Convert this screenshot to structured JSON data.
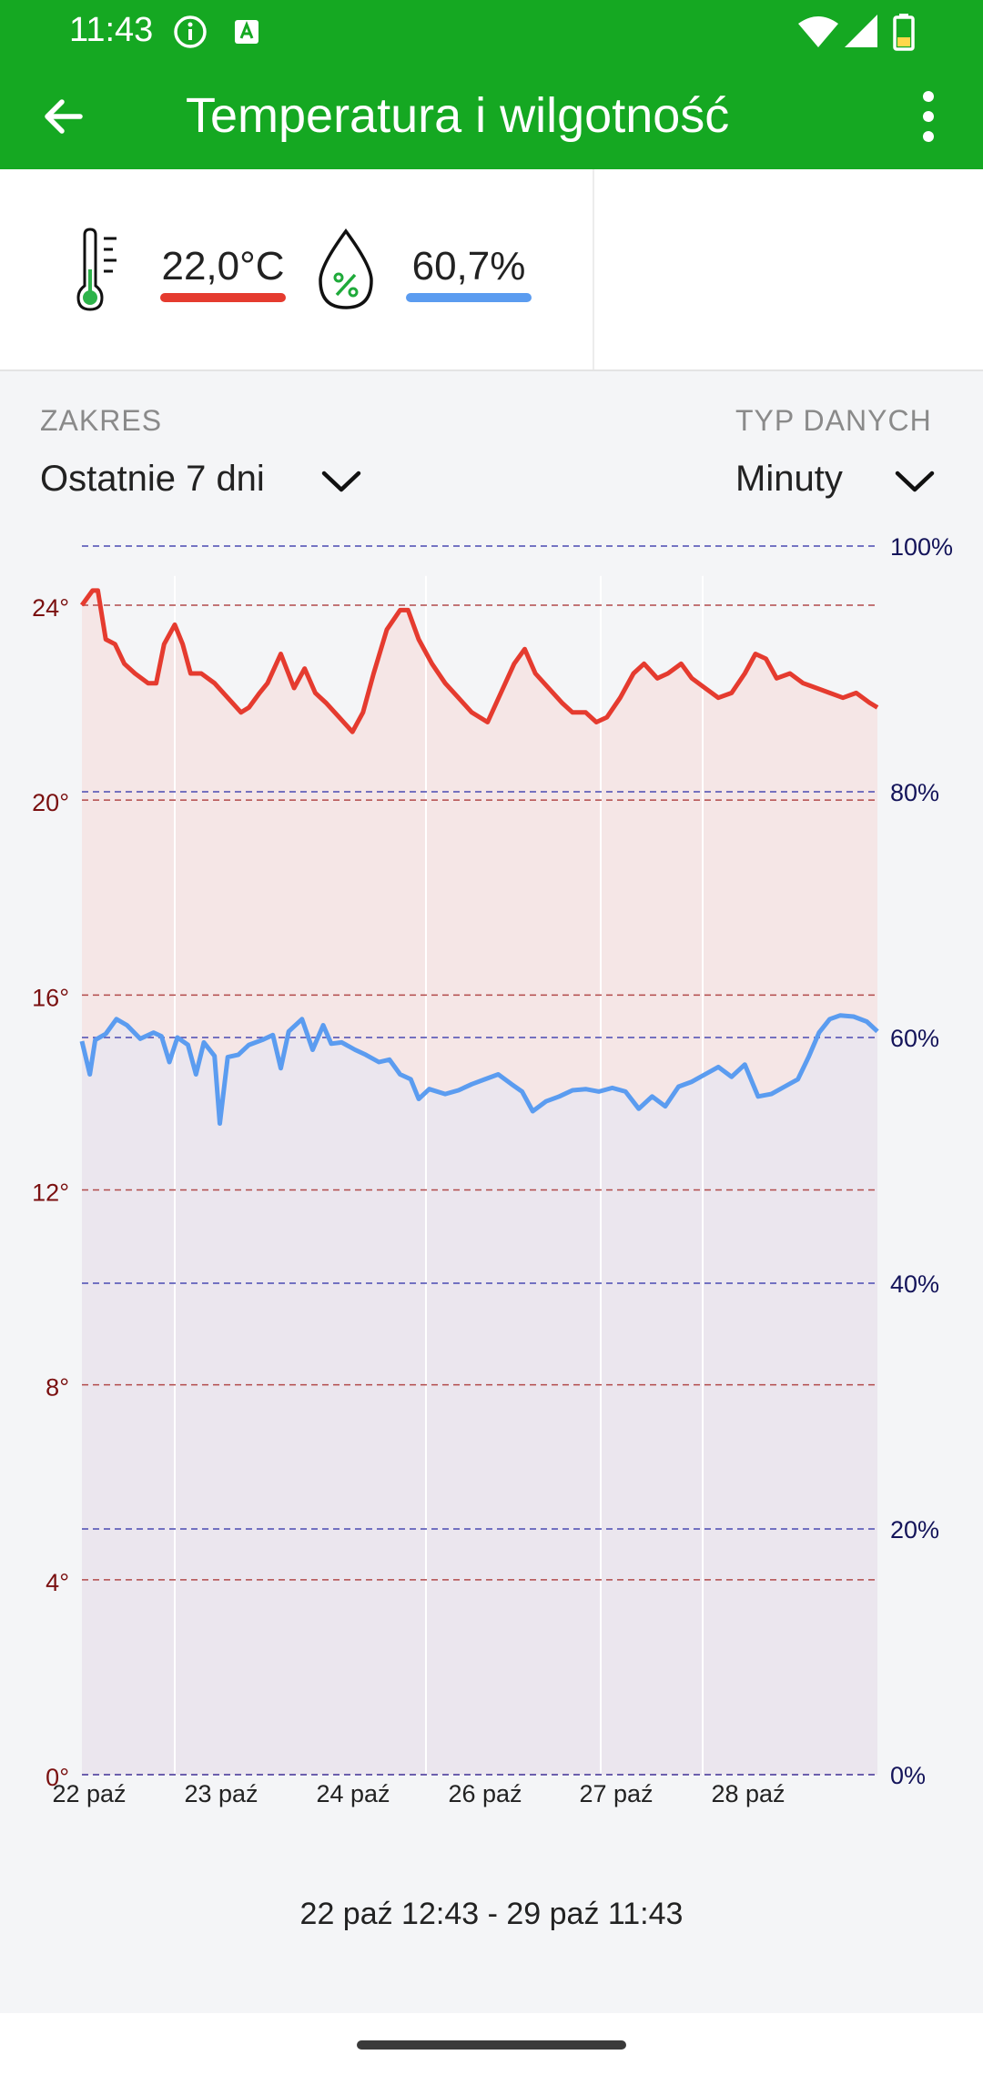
{
  "status_bar": {
    "time": "11:43"
  },
  "app_bar": {
    "title": "Temperatura i wilgotność"
  },
  "readings": {
    "temperature": "22,0°C",
    "humidity": "60,7%"
  },
  "controls": {
    "range_label": "ZAKRES",
    "range_value": "Ostatnie 7 dni",
    "type_label": "TYP DANYCH",
    "type_value": "Minuty"
  },
  "chart_data": {
    "type": "line",
    "x_tick_labels": [
      "22 paź",
      "23 paź",
      "24 paź",
      "26 paź",
      "27 paź",
      "28 paź"
    ],
    "y_left": {
      "tick_labels": [
        "0°",
        "4°",
        "8°",
        "12°",
        "16°",
        "20°",
        "24°"
      ],
      "range": [
        0,
        25.2
      ]
    },
    "y_right": {
      "tick_labels": [
        "0%",
        "20%",
        "40%",
        "60%",
        "80%",
        "100%"
      ],
      "range": [
        0,
        100
      ]
    },
    "grid": true,
    "series": [
      {
        "axis": "left",
        "color": "#e53b2f",
        "points": [
          [
            0,
            24.0
          ],
          [
            0.8,
            24.3
          ],
          [
            1.2,
            24.3
          ],
          [
            1.8,
            23.3
          ],
          [
            2.5,
            23.2
          ],
          [
            3.2,
            22.8
          ],
          [
            4.0,
            22.6
          ],
          [
            5.0,
            22.4
          ],
          [
            5.6,
            22.4
          ],
          [
            6.2,
            23.2
          ],
          [
            7.0,
            23.6
          ],
          [
            7.6,
            23.2
          ],
          [
            8.2,
            22.6
          ],
          [
            9.0,
            22.6
          ],
          [
            10.0,
            22.4
          ],
          [
            11.0,
            22.1
          ],
          [
            12.0,
            21.8
          ],
          [
            12.6,
            21.9
          ],
          [
            13.4,
            22.2
          ],
          [
            14.0,
            22.4
          ],
          [
            15.0,
            23.0
          ],
          [
            16.0,
            22.3
          ],
          [
            16.8,
            22.7
          ],
          [
            17.6,
            22.2
          ],
          [
            18.4,
            22.0
          ],
          [
            19.4,
            21.7
          ],
          [
            20.4,
            21.4
          ],
          [
            21.2,
            21.8
          ],
          [
            22.0,
            22.6
          ],
          [
            23.0,
            23.5
          ],
          [
            24.0,
            23.9
          ],
          [
            24.6,
            23.9
          ],
          [
            25.4,
            23.3
          ],
          [
            26.4,
            22.8
          ],
          [
            27.4,
            22.4
          ],
          [
            28.4,
            22.1
          ],
          [
            29.4,
            21.8
          ],
          [
            30.6,
            21.6
          ],
          [
            31.6,
            22.2
          ],
          [
            32.6,
            22.8
          ],
          [
            33.4,
            23.1
          ],
          [
            34.2,
            22.6
          ],
          [
            35.2,
            22.3
          ],
          [
            36.2,
            22.0
          ],
          [
            37.0,
            21.8
          ],
          [
            38.0,
            21.8
          ],
          [
            38.8,
            21.6
          ],
          [
            39.6,
            21.7
          ],
          [
            40.6,
            22.1
          ],
          [
            41.6,
            22.6
          ],
          [
            42.4,
            22.8
          ],
          [
            43.4,
            22.5
          ],
          [
            44.2,
            22.6
          ],
          [
            45.2,
            22.8
          ],
          [
            46.0,
            22.5
          ],
          [
            47.0,
            22.3
          ],
          [
            48.0,
            22.1
          ],
          [
            49.0,
            22.2
          ],
          [
            50.0,
            22.6
          ],
          [
            50.8,
            23.0
          ],
          [
            51.6,
            22.9
          ],
          [
            52.4,
            22.5
          ],
          [
            53.4,
            22.6
          ],
          [
            54.4,
            22.4
          ],
          [
            55.4,
            22.3
          ],
          [
            56.4,
            22.2
          ],
          [
            57.4,
            22.1
          ],
          [
            58.4,
            22.2
          ],
          [
            59.4,
            22.0
          ],
          [
            60,
            21.9
          ]
        ]
      },
      {
        "axis": "right",
        "color": "#5b9cf0",
        "points": [
          [
            0,
            59.7
          ],
          [
            0.6,
            57.0
          ],
          [
            1.0,
            59.8
          ],
          [
            1.8,
            60.3
          ],
          [
            2.6,
            61.5
          ],
          [
            3.4,
            61.0
          ],
          [
            4.4,
            59.9
          ],
          [
            5.4,
            60.4
          ],
          [
            6.0,
            60.1
          ],
          [
            6.6,
            58.0
          ],
          [
            7.2,
            60.0
          ],
          [
            8.0,
            59.4
          ],
          [
            8.6,
            57.0
          ],
          [
            9.2,
            59.6
          ],
          [
            10.0,
            58.5
          ],
          [
            10.4,
            53.0
          ],
          [
            11.0,
            58.4
          ],
          [
            11.8,
            58.6
          ],
          [
            12.6,
            59.4
          ],
          [
            13.6,
            59.8
          ],
          [
            14.4,
            60.2
          ],
          [
            15.0,
            57.5
          ],
          [
            15.6,
            60.5
          ],
          [
            16.6,
            61.5
          ],
          [
            17.4,
            59.0
          ],
          [
            18.2,
            61.0
          ],
          [
            18.8,
            59.5
          ],
          [
            19.6,
            59.6
          ],
          [
            20.6,
            59.0
          ],
          [
            21.4,
            58.6
          ],
          [
            22.4,
            58.0
          ],
          [
            23.2,
            58.2
          ],
          [
            24.0,
            57.0
          ],
          [
            24.8,
            56.6
          ],
          [
            25.4,
            55.0
          ],
          [
            26.2,
            55.8
          ],
          [
            27.4,
            55.4
          ],
          [
            28.4,
            55.7
          ],
          [
            29.4,
            56.2
          ],
          [
            30.4,
            56.6
          ],
          [
            31.4,
            57.0
          ],
          [
            32.4,
            56.2
          ],
          [
            33.2,
            55.6
          ],
          [
            34.0,
            54.0
          ],
          [
            35.0,
            54.8
          ],
          [
            36.0,
            55.2
          ],
          [
            37.0,
            55.7
          ],
          [
            38.0,
            55.8
          ],
          [
            39.0,
            55.6
          ],
          [
            40.0,
            55.9
          ],
          [
            41.0,
            55.6
          ],
          [
            42.0,
            54.2
          ],
          [
            43.0,
            55.2
          ],
          [
            44.0,
            54.4
          ],
          [
            45.0,
            56.0
          ],
          [
            46.0,
            56.4
          ],
          [
            47.0,
            57.0
          ],
          [
            48.0,
            57.6
          ],
          [
            49.0,
            56.8
          ],
          [
            50.0,
            57.8
          ],
          [
            51.0,
            55.2
          ],
          [
            52.0,
            55.4
          ],
          [
            53.0,
            56.0
          ],
          [
            54.0,
            56.6
          ],
          [
            54.8,
            58.4
          ],
          [
            55.6,
            60.4
          ],
          [
            56.4,
            61.5
          ],
          [
            57.2,
            61.8
          ],
          [
            58.2,
            61.7
          ],
          [
            59.2,
            61.3
          ],
          [
            60,
            60.5
          ]
        ]
      }
    ]
  },
  "date_range": "22 paź 12:43 - 29 paź 11:43"
}
